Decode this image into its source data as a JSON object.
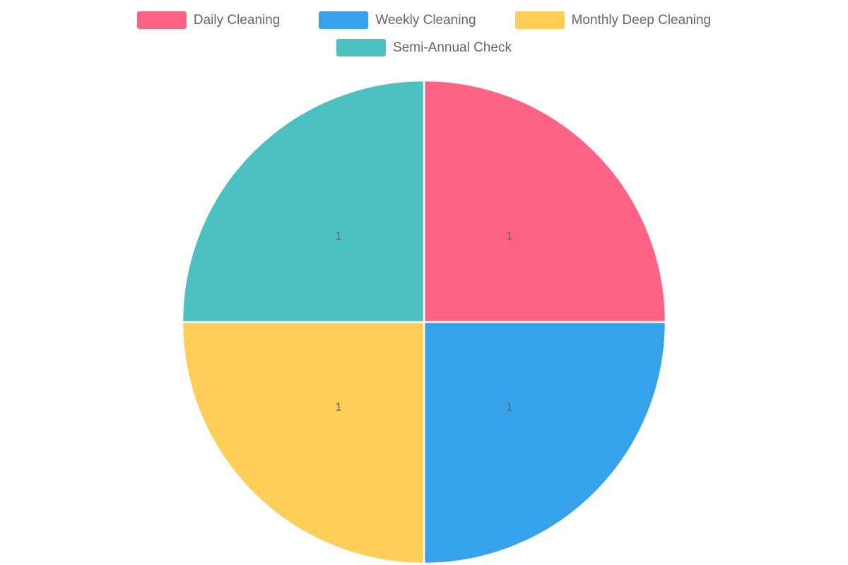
{
  "chart_data": {
    "type": "pie",
    "labels": [
      "Daily Cleaning",
      "Weekly Cleaning",
      "Monthly Deep Cleaning",
      "Semi-Annual Check"
    ],
    "values": [
      1,
      1,
      1,
      1
    ],
    "data_labels": [
      "1",
      "1",
      "1",
      "1"
    ],
    "colors": [
      "#FF6384",
      "#36A2EB",
      "#FFCE56",
      "#4BC0C0"
    ],
    "legend_position": "top",
    "start_angle_deg": 0,
    "direction": "clockwise",
    "slice_border_color": "#FFFFFF",
    "label_color": "#666666",
    "legend_text_color": "#666666",
    "title": ""
  }
}
